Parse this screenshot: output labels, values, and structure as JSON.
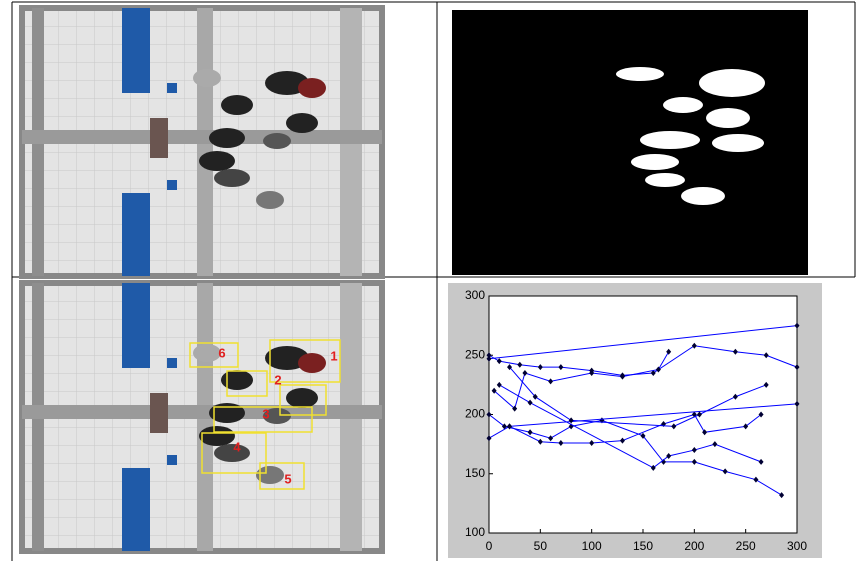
{
  "tracking_labels": [
    "1",
    "2",
    "3",
    "4",
    "5",
    "6"
  ],
  "chart_data": {
    "type": "line",
    "color": "#0000ff",
    "marker_color": "#000033",
    "xlim": [
      0,
      300
    ],
    "ylim": [
      100,
      300
    ],
    "xticks": [
      0,
      50,
      100,
      150,
      200,
      250,
      300
    ],
    "yticks": [
      100,
      150,
      200,
      250,
      300
    ],
    "series": [
      {
        "x": [
          0,
          10,
          30,
          50,
          70,
          100,
          130,
          160,
          200,
          240,
          270,
          300
        ],
        "values": [
          250,
          245,
          242,
          240,
          240,
          237,
          233,
          235,
          258,
          253,
          250,
          240
        ]
      },
      {
        "x": [
          0,
          15,
          40,
          60,
          80,
          110,
          150,
          170,
          200,
          230,
          260,
          285
        ],
        "values": [
          200,
          190,
          185,
          180,
          190,
          195,
          182,
          160,
          160,
          152,
          145,
          132
        ]
      },
      {
        "x": [
          0,
          20,
          50,
          70,
          100,
          130,
          170,
          200,
          210,
          250,
          265
        ],
        "values": [
          180,
          190,
          177,
          176,
          176,
          178,
          192,
          200,
          185,
          190,
          200
        ]
      },
      {
        "x": [
          5,
          25,
          35,
          60,
          100,
          130,
          165,
          175
        ],
        "values": [
          220,
          205,
          235,
          228,
          235,
          232,
          238,
          253
        ]
      },
      {
        "x": [
          0,
          300
        ],
        "values": [
          247,
          275
        ]
      },
      {
        "x": [
          20,
          300
        ],
        "values": [
          190,
          209
        ]
      },
      {
        "x": [
          20,
          45,
          80,
          180,
          205,
          240,
          270
        ],
        "values": [
          240,
          215,
          195,
          190,
          200,
          215,
          225
        ]
      },
      {
        "x": [
          10,
          40,
          160,
          175,
          200,
          220,
          265
        ],
        "values": [
          225,
          210,
          155,
          165,
          170,
          175,
          160
        ]
      }
    ]
  }
}
